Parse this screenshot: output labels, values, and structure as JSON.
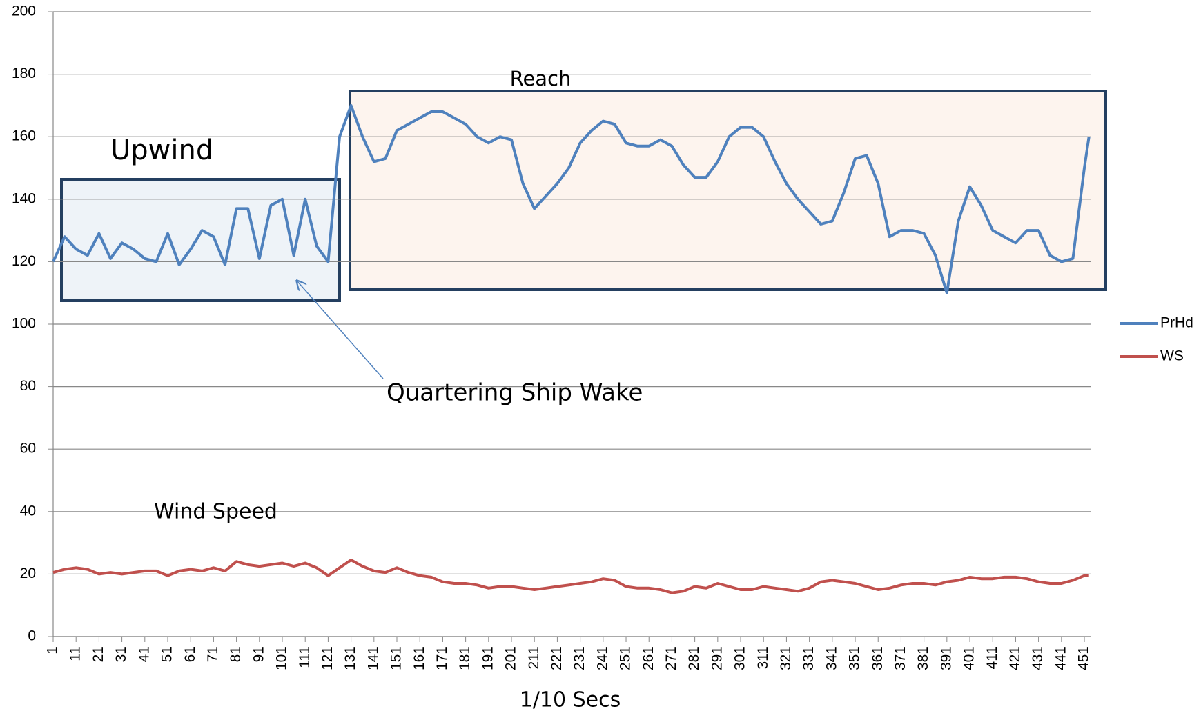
{
  "chart_data": {
    "type": "line",
    "annotations": [
      "Upwind",
      "Reach",
      "Quartering Ship Wake",
      "Wind Speed"
    ],
    "xlabel": "1/10 Secs",
    "x": [
      1,
      6,
      11,
      16,
      21,
      26,
      31,
      36,
      41,
      46,
      51,
      56,
      61,
      66,
      71,
      76,
      81,
      86,
      91,
      96,
      101,
      106,
      111,
      116,
      121,
      126,
      131,
      136,
      141,
      146,
      151,
      156,
      161,
      166,
      171,
      176,
      181,
      186,
      191,
      196,
      201,
      206,
      211,
      216,
      221,
      226,
      231,
      236,
      241,
      246,
      251,
      256,
      261,
      266,
      271,
      276,
      281,
      286,
      291,
      296,
      301,
      306,
      311,
      316,
      321,
      326,
      331,
      336,
      341,
      346,
      351,
      356,
      361,
      366,
      371,
      376,
      381,
      386,
      391,
      396,
      401,
      406,
      411,
      416,
      421,
      426,
      431,
      436,
      441,
      446,
      451,
      453
    ],
    "series": [
      {
        "name": "PrHd",
        "color": "#4f81bd",
        "values": [
          120,
          128,
          124,
          122,
          129,
          121,
          126,
          124,
          121,
          120,
          129,
          119,
          124,
          130,
          128,
          119,
          137,
          137,
          121,
          138,
          140,
          122,
          140,
          125,
          120,
          160,
          170,
          160,
          152,
          153,
          162,
          164,
          166,
          168,
          168,
          166,
          164,
          160,
          158,
          160,
          159,
          145,
          137,
          141,
          145,
          150,
          158,
          162,
          165,
          164,
          158,
          157,
          157,
          159,
          157,
          151,
          147,
          147,
          152,
          160,
          163,
          163,
          160,
          152,
          145,
          140,
          136,
          132,
          133,
          142,
          153,
          154,
          145,
          128,
          130,
          130,
          129,
          122,
          110,
          133,
          144,
          138,
          130,
          128,
          126,
          130,
          130,
          122,
          120,
          121,
          150,
          160
        ]
      },
      {
        "name": "WS",
        "color": "#c0504d",
        "values": [
          20.5,
          21.5,
          22,
          21.5,
          20,
          20.5,
          20,
          20.5,
          21,
          21,
          19.5,
          21,
          21.5,
          21,
          22,
          21,
          24,
          23,
          22.5,
          23,
          23.5,
          22.5,
          23.5,
          22,
          19.5,
          22,
          24.5,
          22.5,
          21,
          20.5,
          22,
          20.5,
          19.5,
          19,
          17.5,
          17,
          17,
          16.5,
          15.5,
          16,
          16,
          15.5,
          15,
          15.5,
          16,
          16.5,
          17,
          17.5,
          18.5,
          18,
          16,
          15.5,
          15.5,
          15,
          14,
          14.5,
          16,
          15.5,
          17,
          16,
          15,
          15,
          16,
          15.5,
          15,
          14.5,
          15.5,
          17.5,
          18,
          17.5,
          17,
          16,
          15,
          15.5,
          16.5,
          17,
          17,
          16.5,
          17.5,
          18,
          19,
          18.5,
          18.5,
          19,
          19,
          18.5,
          17.5,
          17,
          17,
          18,
          19.5,
          19.5
        ]
      }
    ],
    "xlim": [
      1,
      454
    ],
    "xticks": [
      1,
      11,
      21,
      31,
      41,
      51,
      61,
      71,
      81,
      91,
      101,
      111,
      121,
      131,
      141,
      151,
      161,
      171,
      181,
      191,
      201,
      211,
      221,
      231,
      241,
      251,
      261,
      271,
      281,
      291,
      301,
      311,
      321,
      331,
      341,
      351,
      361,
      371,
      381,
      391,
      401,
      411,
      421,
      431,
      441,
      451
    ],
    "ylim": [
      0,
      200
    ],
    "yticks": [
      0,
      20,
      40,
      60,
      80,
      100,
      120,
      140,
      160,
      180,
      200
    ],
    "grid": true,
    "legend": "right"
  }
}
